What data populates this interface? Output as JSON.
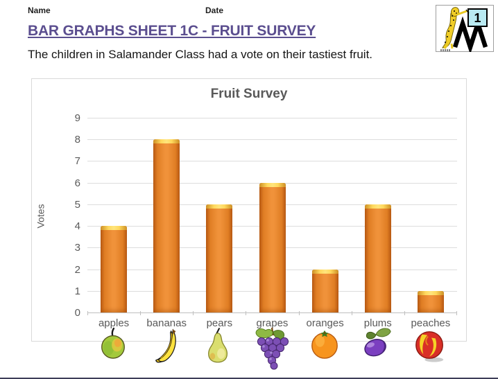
{
  "page": {
    "name_label": "Name",
    "date_label": "Date",
    "title": "BAR GRAPHS SHEET 1C - FRUIT SURVEY",
    "subtitle": "The children in Salamander Class had a vote on their tastiest fruit.",
    "logo_number": "1"
  },
  "colors": {
    "title_purple": "#5b4e8f",
    "bar_orange": "#f0923a",
    "bar_edge_orange": "#bd5d15",
    "bar_cap_yellow": "#ffd95e",
    "axis_text_gray": "#595959",
    "gridline_gray": "#dcdcdc",
    "bottom_rule": "#3d3d58"
  },
  "chart_data": {
    "type": "bar",
    "title": "Fruit Survey",
    "xlabel": "",
    "ylabel": "Votes",
    "categories": [
      "apples",
      "bananas",
      "pears",
      "grapes",
      "oranges",
      "plums",
      "peaches"
    ],
    "values": [
      4,
      8,
      5,
      6,
      2,
      5,
      1
    ],
    "ylim": [
      0,
      9
    ],
    "ytick_step": 1,
    "grid": true,
    "legend": "none",
    "icons": [
      "apple-icon",
      "banana-icon",
      "pear-icon",
      "grapes-icon",
      "orange-icon",
      "plum-icon",
      "peach-icon"
    ]
  }
}
